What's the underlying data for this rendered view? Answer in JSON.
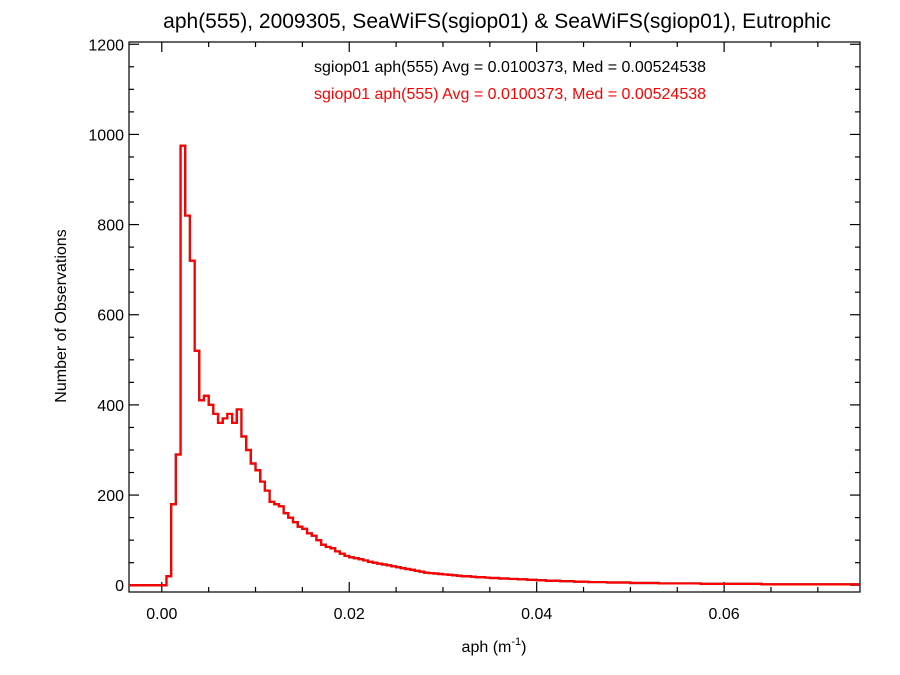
{
  "chart_data": {
    "type": "histogram",
    "title": "aph(555), 2009305, SeaWiFS(sgiop01) & SeaWiFS(sgiop01), Eutrophic",
    "xlabel_main": "aph (m",
    "xlabel_sup": "-1",
    "xlabel_end": ")",
    "ylabel": "Number of Observations",
    "xlim": [
      -0.0035,
      0.0745
    ],
    "ylim": [
      -15,
      1205
    ],
    "xticks": [
      0.0,
      0.02,
      0.04,
      0.06
    ],
    "xtick_labels": [
      "0.00",
      "0.02",
      "0.04",
      "0.06"
    ],
    "yticks": [
      0,
      200,
      400,
      600,
      800,
      1000,
      1200
    ],
    "ytick_labels": [
      "0",
      "200",
      "400",
      "600",
      "800",
      "1000",
      "1200"
    ],
    "bin_width": 0.0005,
    "series": [
      {
        "name": "sgiop01 aph(555) Avg = 0.0100373, Med = 0.00524538",
        "color": "#000000",
        "bin_start": -0.0035,
        "values": [
          0,
          0,
          0,
          0,
          0,
          0,
          0,
          0,
          20,
          180,
          290,
          975,
          820,
          720,
          520,
          410,
          420,
          400,
          380,
          360,
          370,
          380,
          360,
          390,
          330,
          300,
          270,
          255,
          230,
          210,
          185,
          180,
          175,
          160,
          150,
          140,
          130,
          125,
          115,
          110,
          100,
          90,
          85,
          82,
          75,
          70,
          65,
          62,
          60,
          58,
          55,
          52,
          50,
          48,
          46,
          44,
          42,
          40,
          38,
          36,
          34,
          32,
          30,
          28,
          27,
          26,
          25,
          24,
          23,
          22,
          21,
          20,
          20,
          19,
          18,
          18,
          17,
          16,
          16,
          15,
          15,
          14,
          14,
          13,
          13,
          12,
          12,
          11,
          11,
          10,
          10,
          10,
          9,
          9,
          9,
          8,
          8,
          8,
          7,
          7,
          7,
          7,
          6,
          6,
          6,
          6,
          6,
          5,
          5,
          5,
          5,
          5,
          5,
          4,
          4,
          4,
          4,
          4,
          4,
          4,
          4,
          4,
          3,
          3,
          3,
          3,
          3,
          3,
          3,
          3,
          3,
          3,
          3,
          3,
          3,
          2,
          2,
          2,
          2,
          2,
          2,
          2,
          2,
          2,
          2,
          2,
          2,
          2,
          2,
          2,
          2,
          2,
          2,
          2,
          2,
          2
        ]
      },
      {
        "name": "sgiop01 aph(555) Avg = 0.0100373, Med = 0.00524538",
        "color": "#ff0000",
        "bin_start": -0.0035,
        "values": [
          0,
          0,
          0,
          0,
          0,
          0,
          0,
          0,
          20,
          180,
          290,
          975,
          820,
          720,
          520,
          410,
          420,
          400,
          380,
          360,
          370,
          380,
          360,
          390,
          330,
          300,
          270,
          255,
          230,
          210,
          185,
          180,
          175,
          160,
          150,
          140,
          130,
          125,
          115,
          110,
          100,
          90,
          85,
          82,
          75,
          70,
          65,
          62,
          60,
          58,
          55,
          52,
          50,
          48,
          46,
          44,
          42,
          40,
          38,
          36,
          34,
          32,
          30,
          28,
          27,
          26,
          25,
          24,
          23,
          22,
          21,
          20,
          20,
          19,
          18,
          18,
          17,
          16,
          16,
          15,
          15,
          14,
          14,
          13,
          13,
          12,
          12,
          11,
          11,
          10,
          10,
          10,
          9,
          9,
          9,
          8,
          8,
          8,
          7,
          7,
          7,
          7,
          6,
          6,
          6,
          6,
          6,
          5,
          5,
          5,
          5,
          5,
          5,
          4,
          4,
          4,
          4,
          4,
          4,
          4,
          4,
          4,
          3,
          3,
          3,
          3,
          3,
          3,
          3,
          3,
          3,
          3,
          3,
          3,
          3,
          2,
          2,
          2,
          2,
          2,
          2,
          2,
          2,
          2,
          2,
          2,
          2,
          2,
          2,
          2,
          2,
          2,
          2,
          2,
          2,
          2
        ]
      }
    ]
  }
}
